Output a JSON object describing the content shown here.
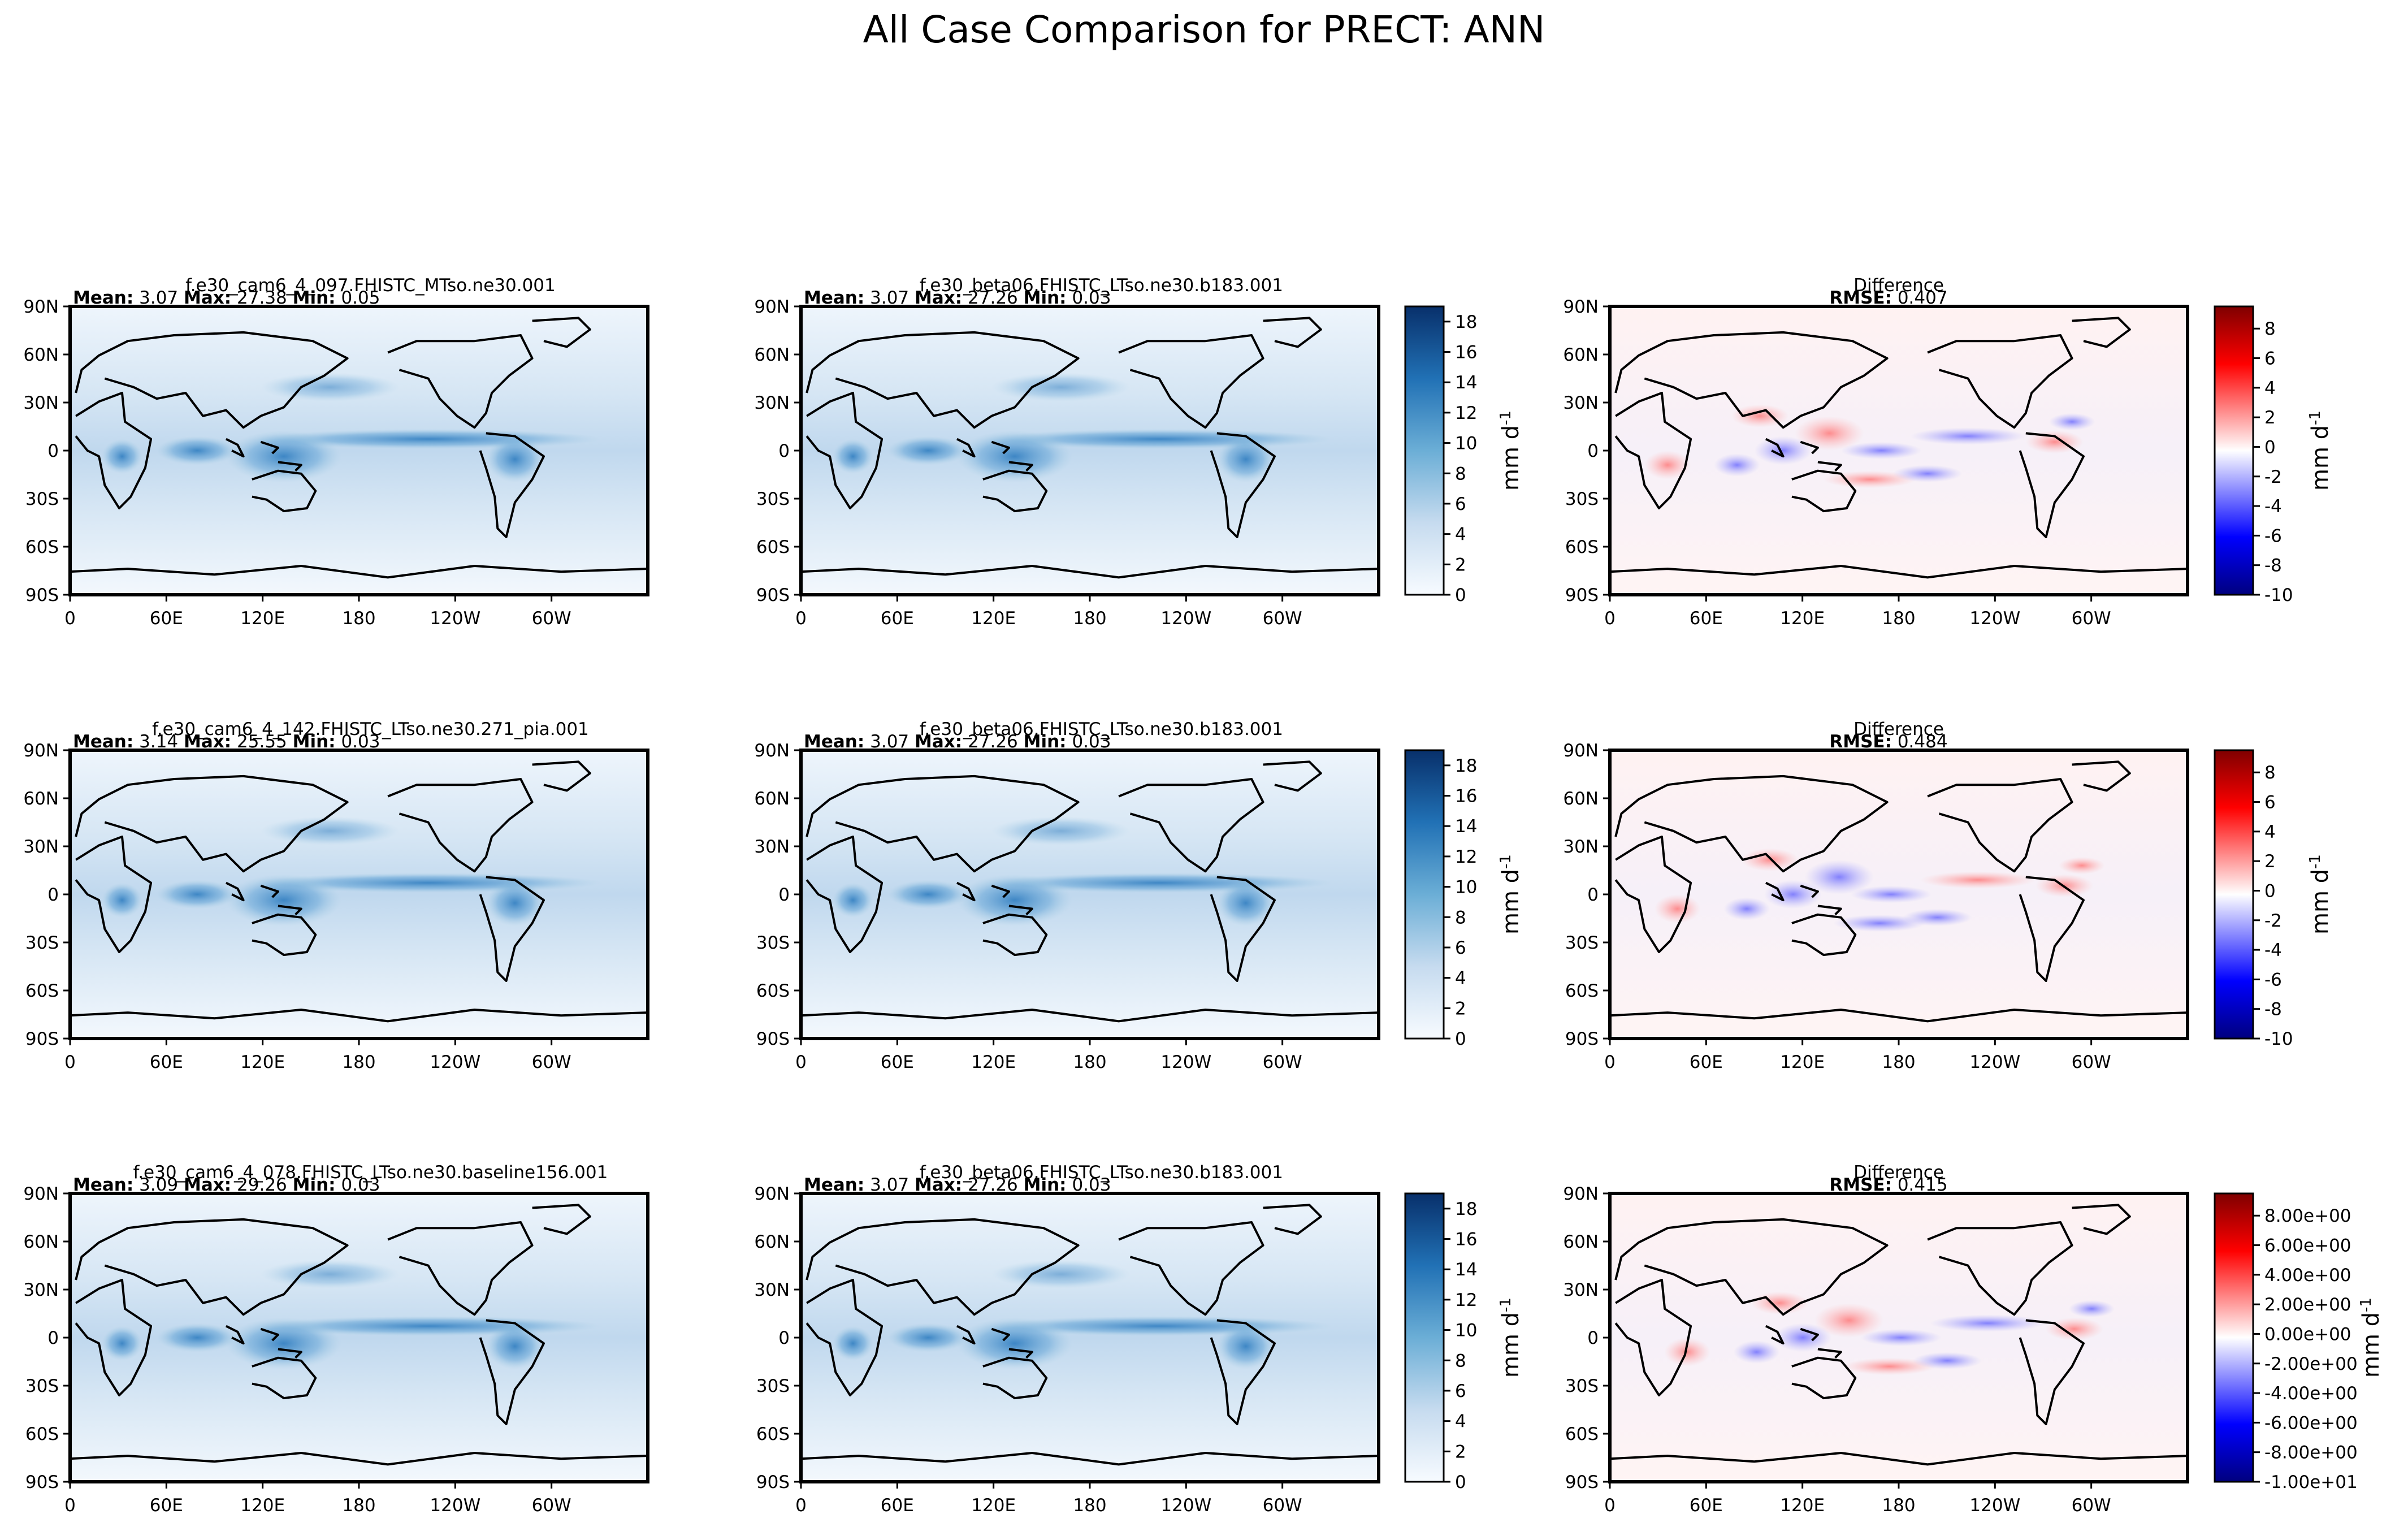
{
  "chart_data": {
    "type": "heatmap",
    "title": "All Case Comparison for PRECT: ANN",
    "x_ticks": [
      "0",
      "60E",
      "120E",
      "180",
      "120W",
      "60W"
    ],
    "y_ticks": [
      "90N",
      "60N",
      "30N",
      "0",
      "30S",
      "60S",
      "90S"
    ],
    "cbar_label": "mm d",
    "cbar_sup": "-1",
    "field_ticks": [
      "0",
      "2",
      "4",
      "6",
      "8",
      "10",
      "12",
      "14",
      "16",
      "18"
    ],
    "diff_ticks_int": [
      "8",
      "6",
      "4",
      "2",
      "0",
      "-2",
      "-4",
      "-6",
      "-8",
      "-10"
    ],
    "diff_ticks_sci": [
      "8.00e+00",
      "6.00e+00",
      "4.00e+00",
      "2.00e+00",
      "0.00e+00",
      "-2.00e+00",
      "-4.00e+00",
      "-6.00e+00",
      "-8.00e+00",
      "-1.00e+01"
    ],
    "rows": [
      {
        "test": {
          "case": "f.e30_cam6_4_097.FHISTC_MTso.ne30.001",
          "mean": "3.07",
          "max": "27.38",
          "min": "0.05"
        },
        "ref": {
          "case": "f.e30_beta06.FHISTC_LTso.ne30.b183.001",
          "mean": "3.07",
          "max": "27.26",
          "min": "0.03"
        },
        "diff": {
          "title": "Difference",
          "rmse": "0.407"
        }
      },
      {
        "test": {
          "case": "f.e30_cam6_4_142.FHISTC_LTso.ne30.271_pia.001",
          "mean": "3.14",
          "max": "25.55",
          "min": "0.03"
        },
        "ref": {
          "case": "f.e30_beta06.FHISTC_LTso.ne30.b183.001",
          "mean": "3.07",
          "max": "27.26",
          "min": "0.03"
        },
        "diff": {
          "title": "Difference",
          "rmse": "0.484"
        }
      },
      {
        "test": {
          "case": "f.e30_cam6_4_078.FHISTC_LTso.ne30.baseline156.001",
          "mean": "3.09",
          "max": "29.26",
          "min": "0.03"
        },
        "ref": {
          "case": "f.e30_beta06.FHISTC_LTso.ne30.b183.001",
          "mean": "3.07",
          "max": "27.26",
          "min": "0.03"
        },
        "diff": {
          "title": "Difference",
          "rmse": "0.415"
        }
      }
    ],
    "labels": {
      "mean": "Mean:",
      "max": "Max:",
      "min": "Min:",
      "rmse": "RMSE:"
    },
    "colors": {
      "blues_low": "#f7fbff",
      "blues_high": "#08306b",
      "diff_neg": "#00007f",
      "diff_zero": "#ffffff",
      "diff_pos": "#7f0000"
    }
  }
}
